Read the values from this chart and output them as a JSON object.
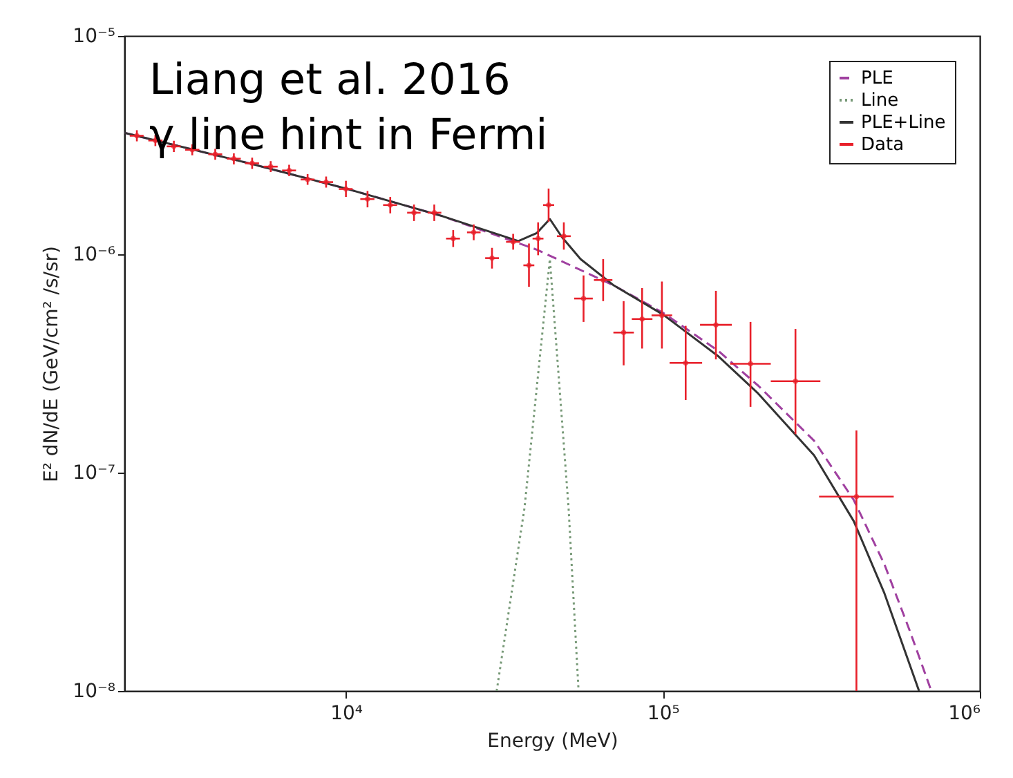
{
  "chart_data": {
    "type": "scatter",
    "xlabel": "Energy (MeV)",
    "ylabel": "E² dN/dE (GeV/cm² /s/sr)",
    "log": "xy",
    "xlim": [
      2000,
      1000000
    ],
    "ylim": [
      1e-08,
      1e-05
    ],
    "xticks": [
      {
        "value": 10000,
        "label": "10⁴"
      },
      {
        "value": 100000,
        "label": "10⁵"
      },
      {
        "value": 1000000,
        "label": "10⁶"
      }
    ],
    "yticks": [
      {
        "value": 1e-08,
        "label": "10⁻⁸"
      },
      {
        "value": 1e-07,
        "label": "10⁻⁷"
      },
      {
        "value": 1e-06,
        "label": "10⁻⁶"
      },
      {
        "value": 1e-05,
        "label": "10⁻⁵"
      }
    ],
    "grid": false,
    "legend": "top right",
    "annotations": [
      "Liang et al. 2016",
      "γ line hint in Fermi"
    ],
    "series": [
      {
        "name": "PLE",
        "type": "line",
        "line_style": "dashed",
        "color": "#a040a0",
        "x": [
          2000,
          5000,
          10000,
          20000,
          40000,
          70000,
          100000,
          150000,
          200000,
          300000,
          400000,
          500000,
          600000,
          703000
        ],
        "values": [
          3.6e-06,
          2.6e-06,
          2e-06,
          1.5e-06,
          1.05e-06,
          7.2e-07,
          5.4e-07,
          3.6e-07,
          2.5e-07,
          1.4e-07,
          7.5e-08,
          3.8e-08,
          1.9e-08,
          1e-08
        ]
      },
      {
        "name": "Line",
        "type": "line",
        "line_style": "dotted",
        "color": "#779977",
        "x": [
          29900,
          36600,
          44000,
          50400,
          54200
        ],
        "values": [
          1e-08,
          6.9e-08,
          9.5e-07,
          6.9e-08,
          1e-08
        ]
      },
      {
        "name": "PLE+Line",
        "type": "line",
        "line_style": "solid",
        "color": "#333333",
        "x": [
          2000,
          5000,
          10000,
          20000,
          35000,
          40000,
          44000,
          48000,
          55000,
          70000,
          100000,
          150000,
          200000,
          300000,
          400000,
          500000,
          643000
        ],
        "values": [
          3.6e-06,
          2.6e-06,
          2e-06,
          1.5e-06,
          1.15e-06,
          1.25e-06,
          1.45e-06,
          1.2e-06,
          9.5e-07,
          7.2e-07,
          5.3e-07,
          3.4e-07,
          2.3e-07,
          1.2e-07,
          6e-08,
          2.8e-08,
          1e-08
        ]
      },
      {
        "name": "Data",
        "type": "scatter",
        "marker": "circle",
        "color": "#e8202a",
        "x": [
          2190,
          2505,
          2865,
          3275,
          3870,
          4430,
          5060,
          5790,
          6620,
          7570,
          8660,
          10000,
          11700,
          13800,
          16400,
          19000,
          21800,
          25300,
          28900,
          33700,
          37800,
          40400,
          43600,
          48700,
          56200,
          64800,
          75200,
          86000,
          99300,
          118000,
          147000,
          189000,
          262000,
          408000
        ],
        "values": [
          3.49e-06,
          3.32e-06,
          3.12e-06,
          3.01e-06,
          2.87e-06,
          2.74e-06,
          2.61e-06,
          2.52e-06,
          2.42e-06,
          2.2e-06,
          2.14e-06,
          1.99e-06,
          1.79e-06,
          1.68e-06,
          1.55e-06,
          1.55e-06,
          1.18e-06,
          1.26e-06,
          9.6e-07,
          1.14e-06,
          8.9e-07,
          1.18e-06,
          1.68e-06,
          1.21e-06,
          6.27e-07,
          7.62e-07,
          4.38e-07,
          5.05e-07,
          5.25e-07,
          3.18e-07,
          4.75e-07,
          3.15e-07,
          2.62e-07,
          7.76e-08
        ],
        "errors": [
          [
            3.29e-06,
            3.7e-06
          ],
          [
            3.13e-06,
            3.52e-06
          ],
          [
            2.94e-06,
            3.31e-06
          ],
          [
            2.84e-06,
            3.19e-06
          ],
          [
            2.71e-06,
            3.04e-06
          ],
          [
            2.58e-06,
            2.9e-06
          ],
          [
            2.46e-06,
            2.77e-06
          ],
          [
            2.38e-06,
            2.67e-06
          ],
          [
            2.28e-06,
            2.57e-06
          ],
          [
            2.08e-06,
            2.33e-06
          ],
          [
            2.02e-06,
            2.27e-06
          ],
          [
            1.83e-06,
            2.17e-06
          ],
          [
            1.64e-06,
            1.95e-06
          ],
          [
            1.54e-06,
            1.83e-06
          ],
          [
            1.42e-06,
            1.69e-06
          ],
          [
            1.42e-06,
            1.69e-06
          ],
          [
            1.08e-06,
            1.29e-06
          ],
          [
            1.16e-06,
            1.37e-06
          ],
          [
            8.6e-07,
            1.07e-06
          ],
          [
            1.05e-06,
            1.24e-06
          ],
          [
            7.1e-07,
            1.12e-06
          ],
          [
            9.9e-07,
            1.4e-06
          ],
          [
            1.41e-06,
            2e-06
          ],
          [
            1.05e-06,
            1.4e-06
          ],
          [
            4.9e-07,
            8e-07
          ],
          [
            6.1e-07,
            9.5e-07
          ],
          [
            3.1e-07,
            6.1e-07
          ],
          [
            3.7e-07,
            7e-07
          ],
          [
            3.7e-07,
            7.5e-07
          ],
          [
            2.15e-07,
            4.7e-07
          ],
          [
            3.3e-07,
            6.8e-07
          ],
          [
            2e-07,
            4.9e-07
          ],
          [
            1.5e-07,
            4.55e-07
          ],
          [
            1e-08,
            1.56e-07
          ]
        ],
        "xerrors": [
          [
            2080,
            2300
          ],
          [
            2380,
            2640
          ],
          [
            2720,
            3010
          ],
          [
            3110,
            3450
          ],
          [
            3680,
            4070
          ],
          [
            4210,
            4660
          ],
          [
            4810,
            5320
          ],
          [
            5500,
            6090
          ],
          [
            6290,
            6960
          ],
          [
            7200,
            7960
          ],
          [
            8230,
            9110
          ],
          [
            9500,
            10500
          ],
          [
            11100,
            12300
          ],
          [
            13100,
            14500
          ],
          [
            15600,
            17200
          ],
          [
            18100,
            20000
          ],
          [
            20700,
            22900
          ],
          [
            24100,
            26600
          ],
          [
            27500,
            30400
          ],
          [
            32000,
            35400
          ],
          [
            36300,
            39300
          ],
          [
            38800,
            42000
          ],
          [
            41900,
            45400
          ],
          [
            46300,
            51200
          ],
          [
            52500,
            60100
          ],
          [
            60600,
            69300
          ],
          [
            69800,
            81000
          ],
          [
            79800,
            92700
          ],
          [
            92100,
            107000
          ],
          [
            105000,
            133000
          ],
          [
            131000,
            165000
          ],
          [
            163000,
            219000
          ],
          [
            219000,
            314000
          ],
          [
            311000,
            535000
          ]
        ]
      }
    ]
  }
}
